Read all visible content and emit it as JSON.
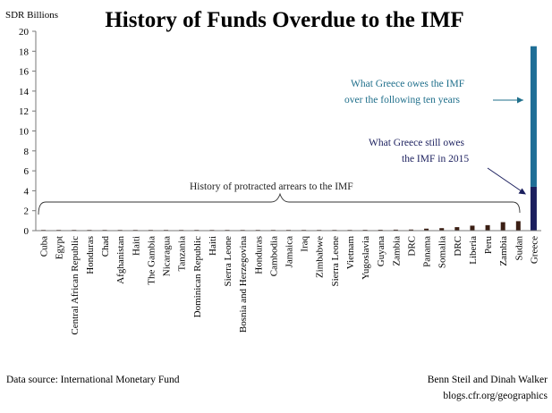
{
  "chart_data": {
    "type": "bar",
    "title": "History of Funds Overdue to the IMF",
    "ylabel": "SDR Billions",
    "xlabel": "",
    "ylim": [
      0,
      20
    ],
    "yticks": [
      0,
      2,
      4,
      6,
      8,
      10,
      12,
      14,
      16,
      18,
      20
    ],
    "grid": false,
    "categories": [
      "Cuba",
      "Egypt",
      "Central African Republic",
      "Honduras",
      "Chad",
      "Afghanistan",
      "Haiti",
      "The Gambia",
      "Nicaragua",
      "Tanzania",
      "Dominican Republic",
      "Haiti",
      "Sierra Leone",
      "Bosnia and Herzegovina",
      "Honduras",
      "Cambodia",
      "Jamaica",
      "Iraq",
      "Zimbabwe",
      "Sierra Leone",
      "Vietnam",
      "Yugoslavia",
      "Guyana",
      "Zambia",
      "DRC",
      "Panama",
      "Somalia",
      "DRC",
      "Liberia",
      "Peru",
      "Zambia",
      "Sudan",
      "Greece"
    ],
    "values": [
      0.02,
      0.02,
      0.03,
      0.03,
      0.03,
      0.03,
      0.03,
      0.04,
      0.04,
      0.04,
      0.04,
      0.04,
      0.05,
      0.05,
      0.05,
      0.05,
      0.06,
      0.06,
      0.06,
      0.07,
      0.07,
      0.08,
      0.09,
      0.1,
      0.11,
      0.2,
      0.25,
      0.35,
      0.5,
      0.55,
      0.85,
      0.95,
      18.5
    ],
    "greece_split": {
      "still_owes_2015": 4.4,
      "following_ten_years": 14.1
    },
    "colors": {
      "arrears": "#3b1f14",
      "greece_2015": "#1b1f5e",
      "greece_future": "#1f6e96",
      "teal_text": "#1f6f8b",
      "navy_text": "#1b1f5e"
    },
    "annotations": {
      "future_line1": "What Greece owes the IMF",
      "future_line2": "over the following  ten years",
      "still_line1": "What Greece still owes",
      "still_line2": "the IMF in 2015",
      "history": "History  of protracted arrears to the IMF"
    }
  },
  "footer": {
    "source": "Data source: International Monetary  Fund",
    "authors": "Benn Steil and Dinah Walker",
    "site": "blogs.cfr.org/geographics"
  }
}
